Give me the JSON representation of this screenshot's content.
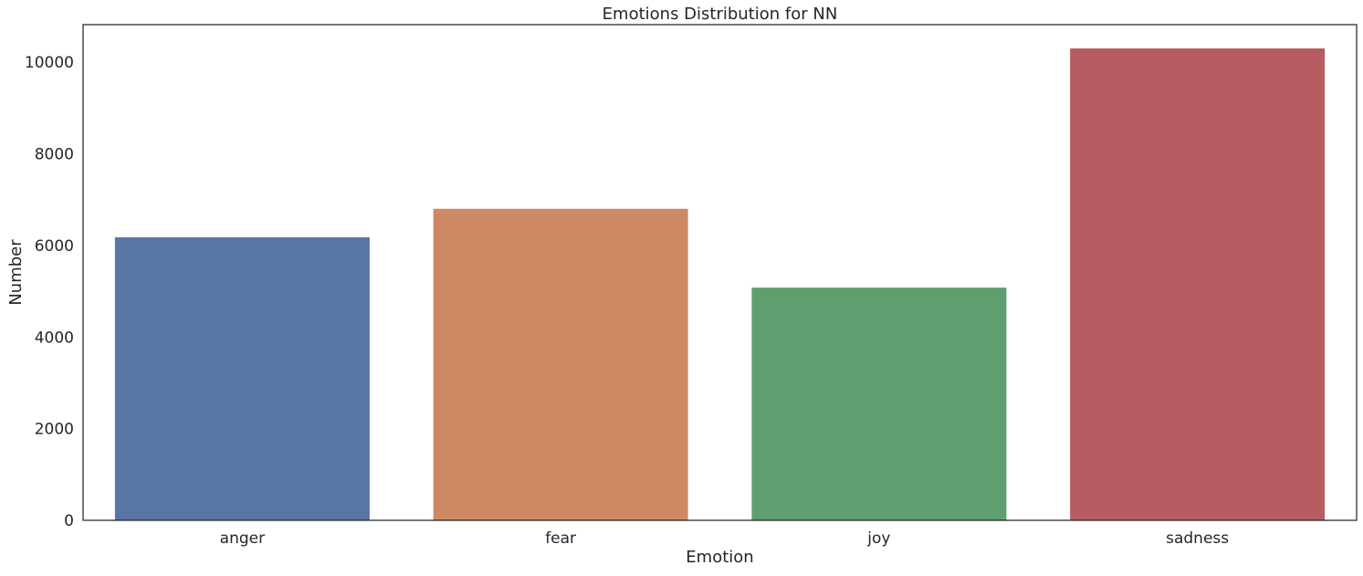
{
  "chart_data": {
    "type": "bar",
    "title": "Emotions Distribution for NN",
    "xlabel": "Emotion",
    "ylabel": "Number",
    "categories": [
      "anger",
      "fear",
      "joy",
      "sadness"
    ],
    "values": [
      6180,
      6800,
      5080,
      10300
    ],
    "colors": [
      "#5875a4",
      "#cc8963",
      "#5f9e6e",
      "#b55d60"
    ],
    "ylim": [
      0,
      10820
    ],
    "yticks": [
      0,
      2000,
      4000,
      6000,
      8000,
      10000
    ],
    "grid": false,
    "legend": "none"
  }
}
